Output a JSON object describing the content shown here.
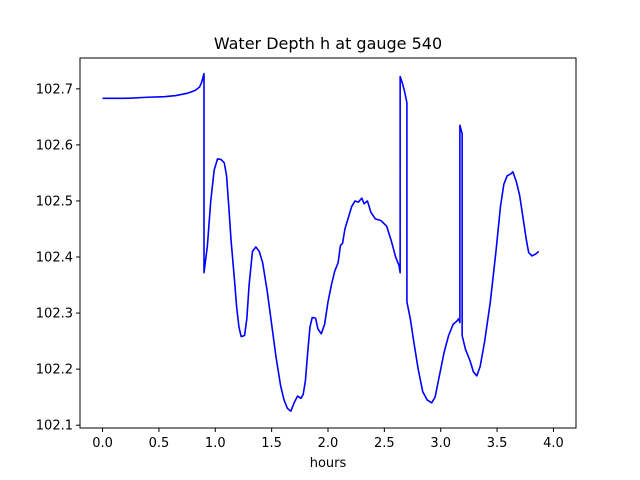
{
  "chart_data": {
    "type": "line",
    "title": "Water Depth h at gauge 540",
    "xlabel": "hours",
    "ylabel": "",
    "xlim": [
      -0.2,
      4.2
    ],
    "ylim": [
      102.095,
      102.755
    ],
    "xticks": [
      0.0,
      0.5,
      1.0,
      1.5,
      2.0,
      2.5,
      3.0,
      3.5,
      4.0
    ],
    "xtick_labels": [
      "0.0",
      "0.5",
      "1.0",
      "1.5",
      "2.0",
      "2.5",
      "3.0",
      "3.5",
      "4.0"
    ],
    "yticks": [
      102.1,
      102.2,
      102.3,
      102.4,
      102.5,
      102.6,
      102.7
    ],
    "ytick_labels": [
      "102.1",
      "102.2",
      "102.3",
      "102.4",
      "102.5",
      "102.6",
      "102.7"
    ],
    "grid": false,
    "series": [
      {
        "color": "#0000ff",
        "points": [
          [
            0.0,
            102.683
          ],
          [
            0.2,
            102.683
          ],
          [
            0.4,
            102.685
          ],
          [
            0.55,
            102.686
          ],
          [
            0.65,
            102.688
          ],
          [
            0.75,
            102.692
          ],
          [
            0.82,
            102.697
          ],
          [
            0.86,
            102.703
          ],
          [
            0.88,
            102.712
          ],
          [
            0.9,
            102.727
          ],
          [
            0.9,
            102.372
          ],
          [
            0.93,
            102.42
          ],
          [
            0.96,
            102.5
          ],
          [
            0.99,
            102.555
          ],
          [
            1.02,
            102.575
          ],
          [
            1.05,
            102.574
          ],
          [
            1.08,
            102.568
          ],
          [
            1.1,
            102.545
          ],
          [
            1.12,
            102.49
          ],
          [
            1.14,
            102.43
          ],
          [
            1.17,
            102.36
          ],
          [
            1.19,
            102.31
          ],
          [
            1.21,
            102.275
          ],
          [
            1.23,
            102.258
          ],
          [
            1.26,
            102.26
          ],
          [
            1.28,
            102.29
          ],
          [
            1.3,
            102.35
          ],
          [
            1.33,
            102.41
          ],
          [
            1.36,
            102.418
          ],
          [
            1.39,
            102.41
          ],
          [
            1.42,
            102.39
          ],
          [
            1.46,
            102.34
          ],
          [
            1.5,
            102.28
          ],
          [
            1.54,
            102.22
          ],
          [
            1.58,
            102.17
          ],
          [
            1.61,
            102.145
          ],
          [
            1.64,
            102.13
          ],
          [
            1.67,
            102.125
          ],
          [
            1.7,
            102.14
          ],
          [
            1.73,
            102.152
          ],
          [
            1.76,
            102.148
          ],
          [
            1.78,
            102.155
          ],
          [
            1.8,
            102.18
          ],
          [
            1.82,
            102.23
          ],
          [
            1.84,
            102.275
          ],
          [
            1.86,
            102.292
          ],
          [
            1.89,
            102.291
          ],
          [
            1.91,
            102.272
          ],
          [
            1.94,
            102.263
          ],
          [
            1.97,
            102.28
          ],
          [
            2.0,
            102.32
          ],
          [
            2.03,
            102.35
          ],
          [
            2.06,
            102.375
          ],
          [
            2.09,
            102.39
          ],
          [
            2.11,
            102.42
          ],
          [
            2.13,
            102.425
          ],
          [
            2.15,
            102.45
          ],
          [
            2.18,
            102.47
          ],
          [
            2.21,
            102.49
          ],
          [
            2.24,
            102.5
          ],
          [
            2.27,
            102.498
          ],
          [
            2.3,
            102.505
          ],
          [
            2.32,
            102.495
          ],
          [
            2.35,
            102.5
          ],
          [
            2.38,
            102.48
          ],
          [
            2.42,
            102.468
          ],
          [
            2.47,
            102.465
          ],
          [
            2.52,
            102.455
          ],
          [
            2.56,
            102.43
          ],
          [
            2.6,
            102.4
          ],
          [
            2.63,
            102.385
          ],
          [
            2.64,
            102.372
          ],
          [
            2.64,
            102.722
          ],
          [
            2.66,
            102.71
          ],
          [
            2.68,
            102.695
          ],
          [
            2.7,
            102.675
          ],
          [
            2.7,
            102.32
          ],
          [
            2.73,
            102.29
          ],
          [
            2.76,
            102.25
          ],
          [
            2.8,
            102.2
          ],
          [
            2.84,
            102.16
          ],
          [
            2.88,
            102.145
          ],
          [
            2.92,
            102.14
          ],
          [
            2.95,
            102.15
          ],
          [
            2.99,
            102.19
          ],
          [
            3.03,
            102.23
          ],
          [
            3.07,
            102.26
          ],
          [
            3.11,
            102.28
          ],
          [
            3.14,
            102.285
          ],
          [
            3.16,
            102.29
          ],
          [
            3.17,
            102.283
          ],
          [
            3.17,
            102.635
          ],
          [
            3.19,
            102.62
          ],
          [
            3.19,
            102.26
          ],
          [
            3.22,
            102.235
          ],
          [
            3.26,
            102.215
          ],
          [
            3.29,
            102.195
          ],
          [
            3.32,
            102.188
          ],
          [
            3.35,
            102.205
          ],
          [
            3.39,
            102.25
          ],
          [
            3.44,
            102.32
          ],
          [
            3.49,
            102.41
          ],
          [
            3.53,
            102.49
          ],
          [
            3.56,
            102.53
          ],
          [
            3.59,
            102.545
          ],
          [
            3.62,
            102.548
          ],
          [
            3.64,
            102.552
          ],
          [
            3.67,
            102.535
          ],
          [
            3.7,
            102.51
          ],
          [
            3.73,
            102.47
          ],
          [
            3.76,
            102.43
          ],
          [
            3.78,
            102.408
          ],
          [
            3.81,
            102.402
          ],
          [
            3.84,
            102.405
          ],
          [
            3.87,
            102.41
          ]
        ]
      }
    ]
  }
}
